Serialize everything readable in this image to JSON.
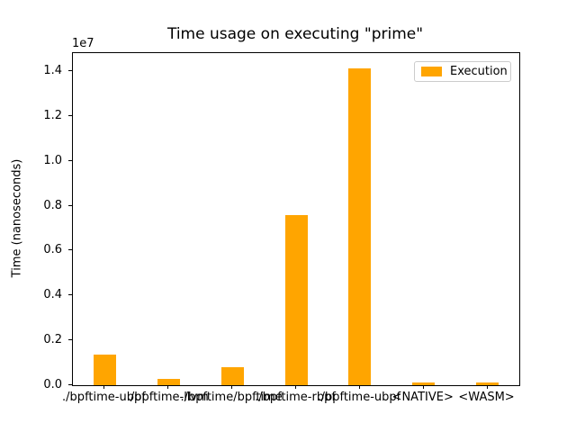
{
  "chart_data": {
    "type": "bar",
    "title": "Time usage on executing \"prime\"",
    "xlabel": "",
    "ylabel": "Time (nanoseconds)",
    "offset_text": "1e7",
    "categories": [
      "./bpftime-ubpf",
      "./bpftime-llvm",
      "./bpftime/bpftime",
      "./bpftime-rbpf",
      "./bpftime-ubpf",
      "<NATIVE>",
      "<WASM>"
    ],
    "values": [
      1350000,
      280000,
      800000,
      7600000,
      14100000,
      130000,
      130000
    ],
    "series": [
      {
        "name": "Execution",
        "values": [
          1350000,
          280000,
          800000,
          7600000,
          14100000,
          130000,
          130000
        ]
      }
    ],
    "legend": {
      "label": "Execution",
      "position": "upper right"
    },
    "bar_color": "#FFA500",
    "ylim": [
      0,
      14800000
    ],
    "yticks": [
      0,
      2000000,
      4000000,
      6000000,
      8000000,
      10000000,
      12000000,
      14000000
    ],
    "ytick_labels": [
      "0.0",
      "0.2",
      "0.4",
      "0.6",
      "0.8",
      "1.0",
      "1.2",
      "1.4"
    ],
    "grid": false
  }
}
